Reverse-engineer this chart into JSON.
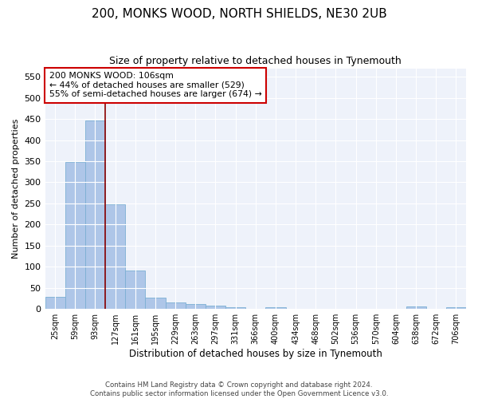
{
  "title1": "200, MONKS WOOD, NORTH SHIELDS, NE30 2UB",
  "title2": "Size of property relative to detached houses in Tynemouth",
  "xlabel": "Distribution of detached houses by size in Tynemouth",
  "ylabel": "Number of detached properties",
  "categories": [
    "25sqm",
    "59sqm",
    "93sqm",
    "127sqm",
    "161sqm",
    "195sqm",
    "229sqm",
    "263sqm",
    "297sqm",
    "331sqm",
    "366sqm",
    "400sqm",
    "434sqm",
    "468sqm",
    "502sqm",
    "536sqm",
    "570sqm",
    "604sqm",
    "638sqm",
    "672sqm",
    "706sqm"
  ],
  "values": [
    28,
    349,
    447,
    247,
    91,
    26,
    15,
    11,
    8,
    5,
    0,
    4,
    0,
    0,
    0,
    0,
    0,
    0,
    6,
    0,
    5
  ],
  "bar_color": "#aec6e8",
  "bar_edge_color": "#7bafd4",
  "vline_color": "#8b0000",
  "annotation_title": "200 MONKS WOOD: 106sqm",
  "annotation_line1": "← 44% of detached houses are smaller (529)",
  "annotation_line2": "55% of semi-detached houses are larger (674) →",
  "box_color": "#cc0000",
  "ylim": [
    0,
    570
  ],
  "yticks": [
    0,
    50,
    100,
    150,
    200,
    250,
    300,
    350,
    400,
    450,
    500,
    550
  ],
  "footer1": "Contains HM Land Registry data © Crown copyright and database right 2024.",
  "footer2": "Contains public sector information licensed under the Open Government Licence v3.0.",
  "background_color": "#eef2fa"
}
